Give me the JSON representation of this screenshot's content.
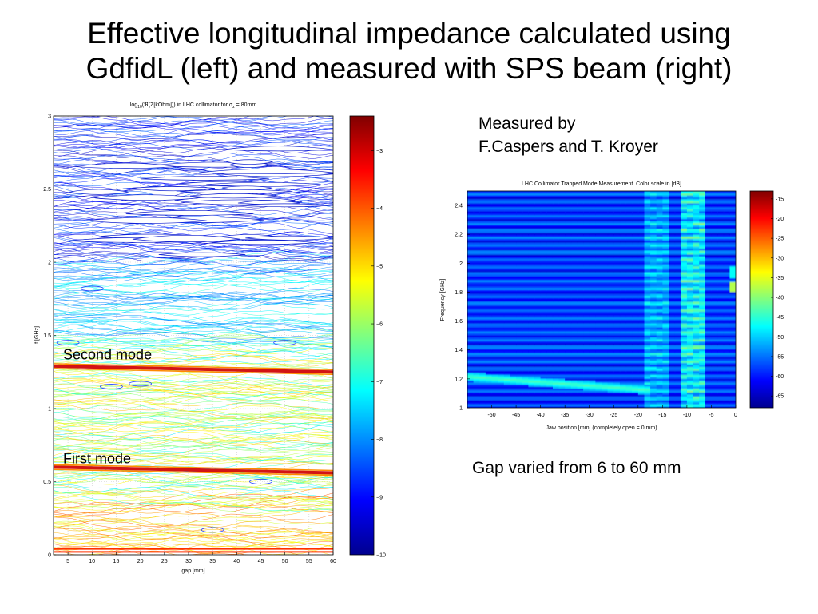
{
  "slide": {
    "title_line1": "Effective longitudinal impedance calculated using",
    "title_line2": "GdfidL (left) and measured with SPS beam (right)",
    "measured_by_line1": "Measured by",
    "measured_by_line2": "F.Caspers and T. Kroyer",
    "gap_note": "Gap varied from 6 to 60 mm"
  },
  "chart_data": [
    {
      "type": "contour",
      "title_prefix": "log",
      "title_sub": "10",
      "title_middle": "(ℜ(Z[kOhm])) in LHC collimator for σ",
      "title_sigma_sub": "z",
      "title_suffix": " = 80mm",
      "xlabel": "gap [mm]",
      "ylabel": "f [GHz]",
      "xlim": [
        2,
        60
      ],
      "ylim": [
        0,
        3
      ],
      "xticks": [
        "5",
        "10",
        "15",
        "20",
        "25",
        "30",
        "35",
        "40",
        "45",
        "50",
        "55",
        "60"
      ],
      "yticks": [
        "0",
        "0.5",
        "1",
        "1.5",
        "2",
        "2.5",
        "3"
      ],
      "colorbar": {
        "range": [
          -10,
          -2.4
        ],
        "ticks": [
          "−3",
          "−4",
          "−5",
          "−6",
          "−7",
          "−8",
          "−9",
          "−10"
        ]
      },
      "grid": true,
      "annotations": [
        {
          "text": "Second mode",
          "freq": 1.33
        },
        {
          "text": "First mode",
          "freq": 0.62
        }
      ],
      "modes": [
        {
          "name": "Second mode",
          "freq_start": 1.29,
          "freq_end": 1.25
        },
        {
          "name": "First mode",
          "freq_start": 0.6,
          "freq_end": 0.56
        }
      ]
    },
    {
      "type": "heatmap",
      "title": "LHC Collimator Trapped Mode Measurement. Color scale in [dB]",
      "xlabel": "Jaw position [mm] (completely open = 0 mm)",
      "ylabel": "Frequency [GHz]",
      "xlim": [
        -55,
        0
      ],
      "ylim": [
        1,
        2.5
      ],
      "xticks": [
        "-50",
        "-45",
        "-40",
        "-35",
        "-30",
        "-25",
        "-20",
        "-15",
        "-10",
        "-5",
        "0"
      ],
      "yticks": [
        "1",
        "1.2",
        "1.4",
        "1.6",
        "1.8",
        "2",
        "2.2",
        "2.4"
      ],
      "colorbar": {
        "range": [
          -68,
          -13
        ],
        "ticks": [
          "-15",
          "-20",
          "-25",
          "-30",
          "-35",
          "-40",
          "-45",
          "-50",
          "-55",
          "-60",
          "-65"
        ]
      }
    }
  ],
  "colors": {
    "colormap": "jet"
  }
}
